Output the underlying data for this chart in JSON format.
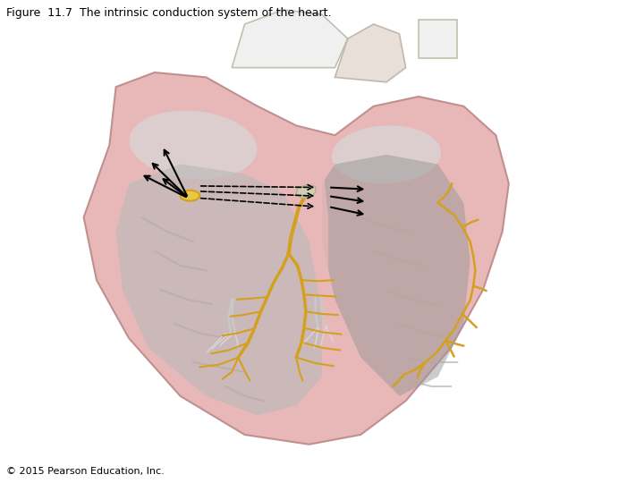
{
  "title": "Figure  11.7  The intrinsic conduction system of the heart.",
  "copyright": "© 2015 Pearson Education, Inc.",
  "background_color": "#ffffff",
  "title_fontsize": 9,
  "copyright_fontsize": 8,
  "fig_width": 7.2,
  "fig_height": 5.4,
  "dpi": 100,
  "heart_outer_color": "#e8b8b8",
  "heart_wall_color": "#c8a0a0",
  "gold_color": "#d4a020",
  "gold_light": "#e8c840"
}
